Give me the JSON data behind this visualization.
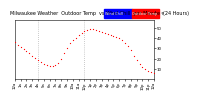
{
  "title": "Milwaukee Weather  Outdoor Temp  vs Wind Chill  per Minute  (24 Hours)",
  "background_color": "#ffffff",
  "plot_bg_color": "#ffffff",
  "dot_color": "#ff0000",
  "dot_size": 0.8,
  "legend_blue": "#0000ff",
  "legend_red": "#ff0000",
  "legend_label_wc": "Wind Chill",
  "legend_label_ot": "Outdoor Temp",
  "vline_positions": [
    240,
    720
  ],
  "vline_color": "#999999",
  "ylim": [
    0,
    58
  ],
  "yticks": [
    10,
    20,
    30,
    40,
    50
  ],
  "xlim": [
    0,
    1440
  ],
  "title_fontsize": 3.5,
  "tick_fontsize": 2.8,
  "x_data": [
    0,
    30,
    60,
    90,
    120,
    150,
    180,
    210,
    240,
    270,
    300,
    330,
    360,
    390,
    420,
    450,
    480,
    510,
    540,
    570,
    600,
    630,
    660,
    690,
    720,
    750,
    780,
    810,
    840,
    870,
    900,
    930,
    960,
    990,
    1020,
    1050,
    1080,
    1110,
    1140,
    1170,
    1200,
    1230,
    1260,
    1290,
    1320,
    1350,
    1380,
    1410,
    1440
  ],
  "y_data": [
    36,
    33,
    31,
    29,
    27,
    25,
    23,
    21,
    19,
    17,
    15,
    14,
    13,
    13,
    14,
    16,
    20,
    25,
    30,
    35,
    38,
    40,
    43,
    45,
    47,
    48,
    49,
    49,
    48,
    47,
    46,
    45,
    44,
    43,
    42,
    41,
    40,
    38,
    35,
    32,
    28,
    23,
    19,
    15,
    12,
    10,
    8,
    7,
    6
  ],
  "xtick_positions": [
    0,
    60,
    120,
    180,
    240,
    300,
    360,
    420,
    480,
    540,
    600,
    660,
    720,
    780,
    840,
    900,
    960,
    1020,
    1080,
    1140,
    1200,
    1260,
    1320,
    1380,
    1440
  ],
  "xtick_labels": [
    "12a",
    "1a",
    "2a",
    "3a",
    "4a",
    "5a",
    "6a",
    "7a",
    "8a",
    "9a",
    "10a",
    "11a",
    "12p",
    "1p",
    "2p",
    "3p",
    "4p",
    "5p",
    "6p",
    "7p",
    "8p",
    "9p",
    "10p",
    "11p",
    "12a"
  ]
}
